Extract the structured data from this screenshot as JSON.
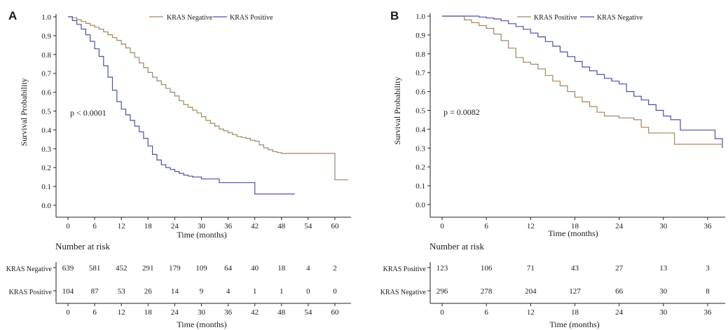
{
  "colors": {
    "brown": "#a58560",
    "blue": "#4b4fa8",
    "axis": "#222222"
  },
  "chart_data": [
    {
      "type": "line",
      "panel_label": "A",
      "xlabel": "Time (months)",
      "ylabel": "Survival Probability",
      "xlim": [
        0,
        63
      ],
      "ylim": [
        0,
        1.0
      ],
      "x_ticks": [
        0,
        6,
        12,
        18,
        24,
        30,
        36,
        42,
        48,
        54,
        60
      ],
      "y_ticks": [
        0.0,
        0.1,
        0.2,
        0.3,
        0.4,
        0.5,
        0.6,
        0.7,
        0.8,
        0.9,
        1.0
      ],
      "grid": false,
      "legend_position": "top-right",
      "pvalue": "p < 0.0001",
      "series": [
        {
          "name": "KRAS Negative",
          "color": "#a58560",
          "points": [
            [
              0,
              1.0
            ],
            [
              1,
              0.995
            ],
            [
              2,
              0.985
            ],
            [
              3,
              0.975
            ],
            [
              4,
              0.965
            ],
            [
              5,
              0.955
            ],
            [
              6,
              0.945
            ],
            [
              7,
              0.935
            ],
            [
              8,
              0.92
            ],
            [
              9,
              0.905
            ],
            [
              10,
              0.89
            ],
            [
              11,
              0.875
            ],
            [
              12,
              0.855
            ],
            [
              13,
              0.835
            ],
            [
              14,
              0.81
            ],
            [
              15,
              0.785
            ],
            [
              16,
              0.755
            ],
            [
              17,
              0.73
            ],
            [
              18,
              0.705
            ],
            [
              19,
              0.68
            ],
            [
              20,
              0.66
            ],
            [
              21,
              0.64
            ],
            [
              22,
              0.62
            ],
            [
              23,
              0.6
            ],
            [
              24,
              0.58
            ],
            [
              25,
              0.555
            ],
            [
              26,
              0.535
            ],
            [
              27,
              0.52
            ],
            [
              28,
              0.505
            ],
            [
              29,
              0.49
            ],
            [
              30,
              0.47
            ],
            [
              31,
              0.45
            ],
            [
              32,
              0.435
            ],
            [
              33,
              0.42
            ],
            [
              34,
              0.405
            ],
            [
              35,
              0.395
            ],
            [
              36,
              0.385
            ],
            [
              37,
              0.375
            ],
            [
              38,
              0.365
            ],
            [
              39,
              0.36
            ],
            [
              40,
              0.355
            ],
            [
              41,
              0.345
            ],
            [
              42,
              0.34
            ],
            [
              43,
              0.32
            ],
            [
              44,
              0.305
            ],
            [
              45,
              0.295
            ],
            [
              46,
              0.285
            ],
            [
              47,
              0.28
            ],
            [
              48,
              0.275
            ],
            [
              54,
              0.275
            ],
            [
              59,
              0.275
            ],
            [
              60,
              0.135
            ],
            [
              63,
              0.135
            ]
          ]
        },
        {
          "name": "KRAS Positive",
          "color": "#4b4fa8",
          "points": [
            [
              0,
              1.0
            ],
            [
              1,
              0.98
            ],
            [
              2,
              0.96
            ],
            [
              3,
              0.935
            ],
            [
              4,
              0.905
            ],
            [
              5,
              0.87
            ],
            [
              6,
              0.83
            ],
            [
              7,
              0.79
            ],
            [
              8,
              0.74
            ],
            [
              9,
              0.68
            ],
            [
              10,
              0.61
            ],
            [
              11,
              0.55
            ],
            [
              12,
              0.51
            ],
            [
              13,
              0.48
            ],
            [
              14,
              0.45
            ],
            [
              15,
              0.42
            ],
            [
              16,
              0.39
            ],
            [
              17,
              0.355
            ],
            [
              18,
              0.315
            ],
            [
              19,
              0.27
            ],
            [
              20,
              0.24
            ],
            [
              21,
              0.215
            ],
            [
              22,
              0.2
            ],
            [
              23,
              0.19
            ],
            [
              24,
              0.18
            ],
            [
              25,
              0.17
            ],
            [
              26,
              0.16
            ],
            [
              27,
              0.155
            ],
            [
              28,
              0.15
            ],
            [
              30,
              0.14
            ],
            [
              33,
              0.14
            ],
            [
              34,
              0.12
            ],
            [
              41,
              0.12
            ],
            [
              42,
              0.06
            ],
            [
              51,
              0.06
            ]
          ]
        }
      ],
      "risk_table": {
        "title": "Number at risk",
        "times": [
          0,
          6,
          12,
          18,
          24,
          30,
          36,
          42,
          48,
          54,
          60
        ],
        "rows": [
          {
            "name": "KRAS Negative",
            "color": "#a58560",
            "values": [
              639,
              581,
              452,
              291,
              179,
              109,
              64,
              40,
              18,
              4,
              2
            ]
          },
          {
            "name": "KRAS Positive",
            "color": "#4b4fa8",
            "values": [
              104,
              87,
              53,
              26,
              14,
              9,
              4,
              1,
              1,
              0,
              0
            ]
          }
        ],
        "xlabel": "Time (months)"
      }
    },
    {
      "type": "line",
      "panel_label": "B",
      "xlabel": "Time (months)",
      "ylabel": "Survival Probability",
      "xlim": [
        0,
        38
      ],
      "ylim": [
        0,
        1.0
      ],
      "x_ticks": [
        0,
        6,
        12,
        18,
        24,
        30,
        36
      ],
      "y_ticks": [
        0.0,
        0.1,
        0.2,
        0.3,
        0.4,
        0.5,
        0.6,
        0.7,
        0.8,
        0.9,
        1.0
      ],
      "grid": false,
      "legend_position": "top-right",
      "pvalue": "p = 0.0082",
      "series": [
        {
          "name": "KRAS Positive",
          "color": "#a58560",
          "points": [
            [
              0,
              1.0
            ],
            [
              2,
              1.0
            ],
            [
              3,
              0.98
            ],
            [
              4,
              0.965
            ],
            [
              5,
              0.95
            ],
            [
              6,
              0.935
            ],
            [
              7,
              0.905
            ],
            [
              8,
              0.87
            ],
            [
              9,
              0.83
            ],
            [
              10,
              0.78
            ],
            [
              11,
              0.755
            ],
            [
              12,
              0.745
            ],
            [
              13,
              0.72
            ],
            [
              14,
              0.685
            ],
            [
              15,
              0.655
            ],
            [
              16,
              0.63
            ],
            [
              17,
              0.6
            ],
            [
              18,
              0.57
            ],
            [
              19,
              0.545
            ],
            [
              20,
              0.52
            ],
            [
              21,
              0.49
            ],
            [
              22,
              0.47
            ],
            [
              24,
              0.46
            ],
            [
              26,
              0.45
            ],
            [
              27,
              0.41
            ],
            [
              28,
              0.38
            ],
            [
              31,
              0.38
            ],
            [
              31.5,
              0.32
            ],
            [
              38,
              0.32
            ]
          ]
        },
        {
          "name": "KRAS Negative",
          "color": "#4b4fa8",
          "points": [
            [
              0,
              1.0
            ],
            [
              4,
              1.0
            ],
            [
              5,
              0.995
            ],
            [
              6,
              0.99
            ],
            [
              7,
              0.985
            ],
            [
              8,
              0.975
            ],
            [
              9,
              0.96
            ],
            [
              10,
              0.945
            ],
            [
              11,
              0.93
            ],
            [
              12,
              0.91
            ],
            [
              13,
              0.89
            ],
            [
              14,
              0.865
            ],
            [
              15,
              0.84
            ],
            [
              16,
              0.81
            ],
            [
              17,
              0.785
            ],
            [
              18,
              0.76
            ],
            [
              19,
              0.73
            ],
            [
              20,
              0.71
            ],
            [
              21,
              0.69
            ],
            [
              22,
              0.67
            ],
            [
              23,
              0.655
            ],
            [
              24,
              0.64
            ],
            [
              25,
              0.6
            ],
            [
              26,
              0.575
            ],
            [
              27,
              0.555
            ],
            [
              28,
              0.53
            ],
            [
              29,
              0.5
            ],
            [
              30,
              0.47
            ],
            [
              31,
              0.45
            ],
            [
              32,
              0.45
            ],
            [
              32.3,
              0.395
            ],
            [
              36.5,
              0.395
            ],
            [
              37,
              0.35
            ],
            [
              38,
              0.3
            ]
          ]
        }
      ],
      "risk_table": {
        "title": "Number at risk",
        "times": [
          0,
          6,
          12,
          18,
          24,
          30,
          36
        ],
        "rows": [
          {
            "name": "KRAS Positive",
            "color": "#a58560",
            "values": [
              123,
              106,
              71,
              43,
              27,
              13,
              3
            ]
          },
          {
            "name": "KRAS Negative",
            "color": "#4b4fa8",
            "values": [
              296,
              278,
              204,
              127,
              66,
              30,
              8
            ]
          }
        ],
        "xlabel": "Time (months)"
      }
    }
  ]
}
